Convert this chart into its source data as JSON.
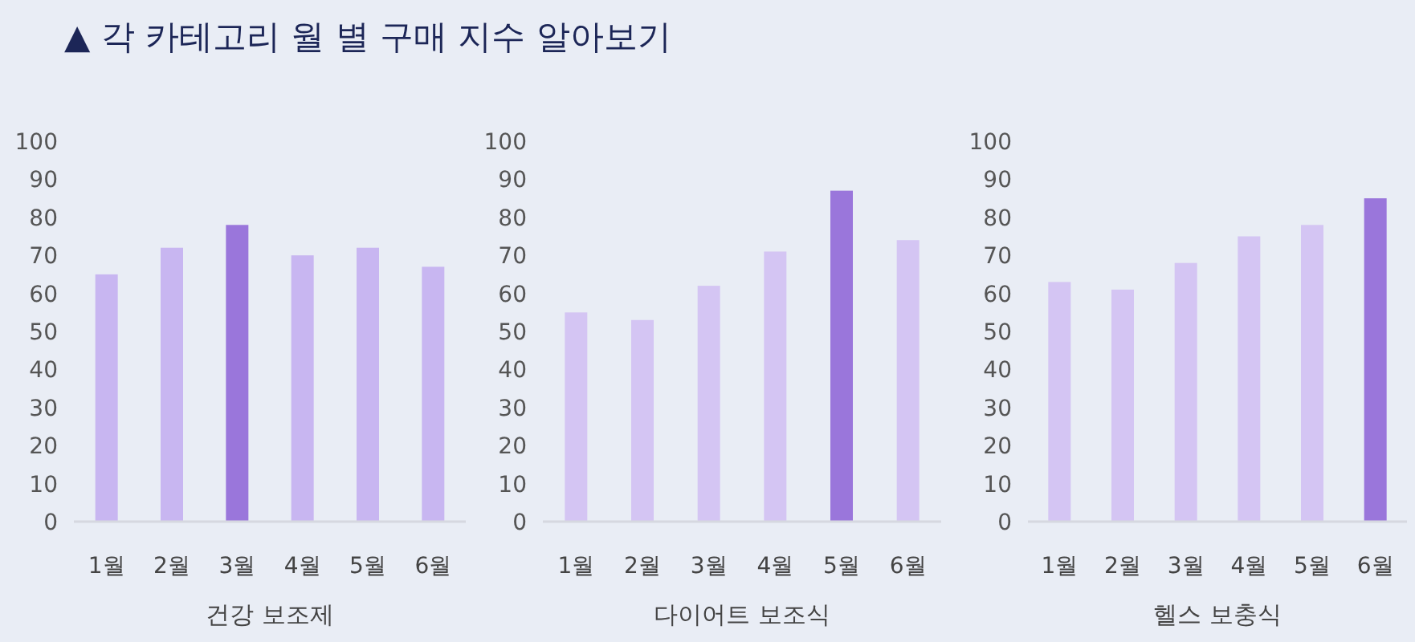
{
  "chart_data": [
    {
      "type": "bar",
      "title": "▲ 각 카테고리 월 별 구매 지수 알아보기",
      "xlabel": "건강 보조제",
      "categories": [
        "1월",
        "2월",
        "3월",
        "4월",
        "5월",
        "6월"
      ],
      "values": [
        65,
        72,
        78,
        70,
        72,
        67
      ],
      "colors": [
        "#c8b6f1",
        "#c8b6f1",
        "#9a76db",
        "#c8b6f1",
        "#c8b6f1",
        "#c8b6f1"
      ],
      "ylim": [
        0,
        100
      ],
      "yticks": [
        0,
        10,
        20,
        30,
        40,
        50,
        60,
        70,
        80,
        90,
        100
      ]
    },
    {
      "type": "bar",
      "xlabel": "다이어트 보조식",
      "categories": [
        "1월",
        "2월",
        "3월",
        "4월",
        "5월",
        "6월"
      ],
      "values": [
        55,
        53,
        62,
        71,
        87,
        74
      ],
      "colors": [
        "#d4c5f3",
        "#d4c5f3",
        "#d4c5f3",
        "#d4c5f3",
        "#9a76db",
        "#d4c5f3"
      ],
      "ylim": [
        0,
        100
      ],
      "yticks": [
        0,
        10,
        20,
        30,
        40,
        50,
        60,
        70,
        80,
        90,
        100
      ]
    },
    {
      "type": "bar",
      "xlabel": "헬스 보충식",
      "categories": [
        "1월",
        "2월",
        "3월",
        "4월",
        "5월",
        "6월"
      ],
      "values": [
        63,
        61,
        68,
        75,
        78,
        85
      ],
      "colors": [
        "#d4c5f3",
        "#d4c5f3",
        "#d4c5f3",
        "#d4c5f3",
        "#d4c5f3",
        "#9a76db"
      ],
      "ylim": [
        0,
        100
      ],
      "yticks": [
        0,
        10,
        20,
        30,
        40,
        50,
        60,
        70,
        80,
        90,
        100
      ]
    }
  ]
}
